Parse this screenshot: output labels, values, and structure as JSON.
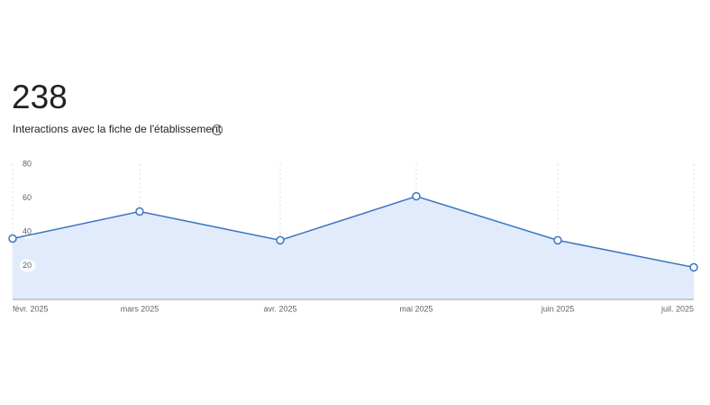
{
  "chart_data": {
    "type": "area",
    "total": 238,
    "title": "Interactions avec la fiche de l'établissement",
    "categories": [
      "févr. 2025",
      "mars 2025",
      "avr. 2025",
      "mai 2025",
      "juin 2025",
      "juil. 2025"
    ],
    "values": [
      36,
      52,
      35,
      61,
      35,
      19
    ],
    "color": "#3a76c4",
    "fill": "#e2ebfb",
    "ylim": [
      0,
      80
    ],
    "yticks": [
      20,
      40,
      60,
      80
    ]
  }
}
